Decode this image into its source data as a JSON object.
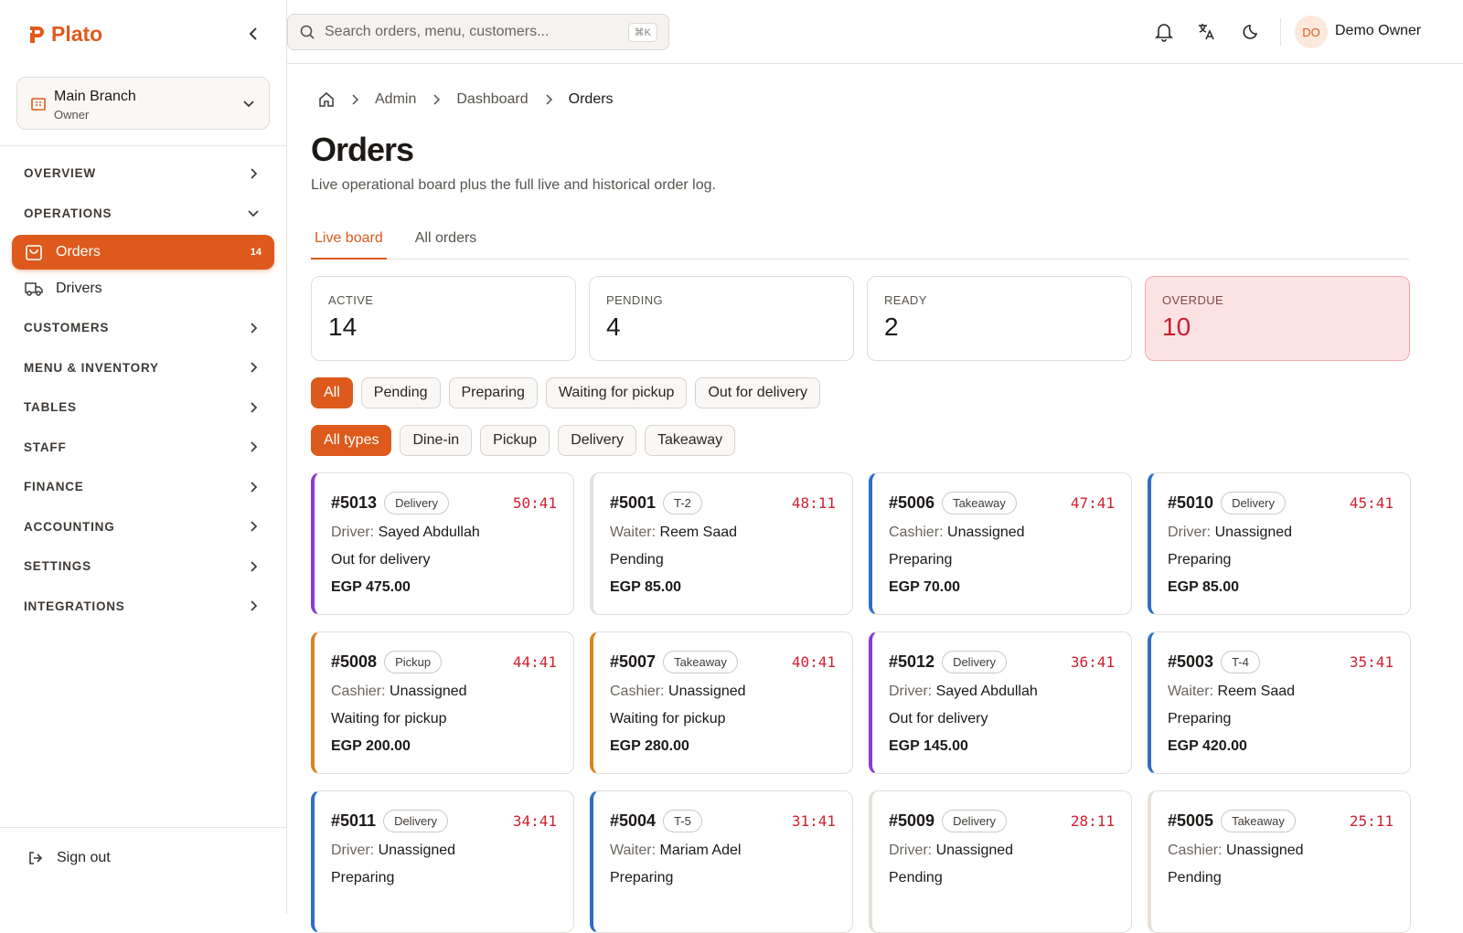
{
  "sidebar": {
    "logo": "Plato",
    "branch": {
      "name": "Main Branch",
      "role": "Owner"
    },
    "nav": [
      {
        "label": "OVERVIEW"
      },
      {
        "label": "OPERATIONS",
        "open": true,
        "items": [
          {
            "label": "Orders",
            "badge": 14,
            "active": true,
            "icon": "bag"
          },
          {
            "label": "Drivers",
            "icon": "truck"
          }
        ]
      },
      {
        "label": "CUSTOMERS"
      },
      {
        "label": "MENU & INVENTORY"
      },
      {
        "label": "TABLES"
      },
      {
        "label": "STAFF"
      },
      {
        "label": "FINANCE"
      },
      {
        "label": "ACCOUNTING"
      },
      {
        "label": "SETTINGS"
      },
      {
        "label": "INTEGRATIONS"
      }
    ],
    "sign_out": "Sign out"
  },
  "topbar": {
    "search_placeholder": "Search orders, menu, customers...",
    "shortcut": "⌘K",
    "avatar": "DO",
    "user": "Demo Owner"
  },
  "breadcrumb": [
    "Admin",
    "Dashboard",
    "Orders"
  ],
  "page": {
    "title": "Orders",
    "subtitle": "Live operational board plus the full live and historical order log."
  },
  "tabs": [
    {
      "label": "Live board",
      "active": true
    },
    {
      "label": "All orders"
    }
  ],
  "stats": [
    {
      "label": "ACTIVE",
      "value": 14
    },
    {
      "label": "PENDING",
      "value": 4
    },
    {
      "label": "READY",
      "value": 2
    },
    {
      "label": "OVERDUE",
      "value": 10,
      "alert": true
    }
  ],
  "status_filters": [
    {
      "label": "All",
      "active": true
    },
    {
      "label": "Pending"
    },
    {
      "label": "Preparing"
    },
    {
      "label": "Waiting for pickup"
    },
    {
      "label": "Out for delivery"
    }
  ],
  "type_filters": [
    {
      "label": "All types",
      "active": true
    },
    {
      "label": "Dine-in"
    },
    {
      "label": "Pickup"
    },
    {
      "label": "Delivery"
    },
    {
      "label": "Takeaway"
    }
  ],
  "orders": [
    {
      "id": "#5013",
      "type": "Delivery",
      "timer": "50:41",
      "role": "Driver:",
      "person": "Sayed Abdullah",
      "status": "Out for delivery",
      "total": "EGP 475.00",
      "accent": "#8a3ad6"
    },
    {
      "id": "#5001",
      "type": "T-2",
      "timer": "48:11",
      "role": "Waiter:",
      "person": "Reem Saad",
      "status": "Pending",
      "total": "EGP 85.00",
      "accent": "#e6e0da"
    },
    {
      "id": "#5006",
      "type": "Takeaway",
      "timer": "47:41",
      "role": "Cashier:",
      "person": "Unassigned",
      "status": "Preparing",
      "total": "EGP 70.00",
      "accent": "#2f6ec4"
    },
    {
      "id": "#5010",
      "type": "Delivery",
      "timer": "45:41",
      "role": "Driver:",
      "person": "Unassigned",
      "status": "Preparing",
      "total": "EGP 85.00",
      "accent": "#2f6ec4"
    },
    {
      "id": "#5008",
      "type": "Pickup",
      "timer": "44:41",
      "role": "Cashier:",
      "person": "Unassigned",
      "status": "Waiting for pickup",
      "total": "EGP 200.00",
      "accent": "#d9841e"
    },
    {
      "id": "#5007",
      "type": "Takeaway",
      "timer": "40:41",
      "role": "Cashier:",
      "person": "Unassigned",
      "status": "Waiting for pickup",
      "total": "EGP 280.00",
      "accent": "#d9841e"
    },
    {
      "id": "#5012",
      "type": "Delivery",
      "timer": "36:41",
      "role": "Driver:",
      "person": "Sayed Abdullah",
      "status": "Out for delivery",
      "total": "EGP 145.00",
      "accent": "#8a3ad6"
    },
    {
      "id": "#5003",
      "type": "T-4",
      "timer": "35:41",
      "role": "Waiter:",
      "person": "Reem Saad",
      "status": "Preparing",
      "total": "EGP 420.00",
      "accent": "#2f6ec4"
    },
    {
      "id": "#5011",
      "type": "Delivery",
      "timer": "34:41",
      "role": "Driver:",
      "person": "Unassigned",
      "status": "Preparing",
      "accent": "#2f6ec4"
    },
    {
      "id": "#5004",
      "type": "T-5",
      "timer": "31:41",
      "role": "Waiter:",
      "person": "Mariam Adel",
      "status": "Preparing",
      "accent": "#2f6ec4"
    },
    {
      "id": "#5009",
      "type": "Delivery",
      "timer": "28:11",
      "role": "Driver:",
      "person": "Unassigned",
      "status": "Pending",
      "accent": "#e6e0da"
    },
    {
      "id": "#5005",
      "type": "Takeaway",
      "timer": "25:11",
      "role": "Cashier:",
      "person": "Unassigned",
      "status": "Pending",
      "accent": "#e6e0da"
    }
  ]
}
